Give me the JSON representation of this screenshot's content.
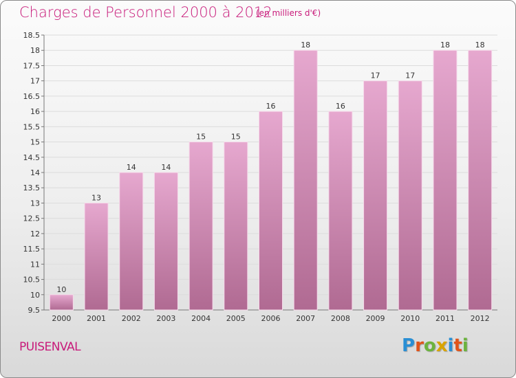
{
  "title": "Charges de Personnel 2000 à 2012",
  "subtitle": "(en milliers d'€)",
  "commune": "PUISENVAL",
  "logo": {
    "letters": [
      "P",
      "r",
      "o",
      "x",
      "i",
      "t",
      "i"
    ],
    "colors": [
      "#2a8fd4",
      "#e0541a",
      "#6cb33e",
      "#d9a400",
      "#2a8fd4",
      "#e0541a",
      "#6cb33e"
    ]
  },
  "colors": {
    "bar_top": "#e6a8cf",
    "bar_bottom": "#b06a92",
    "accent": "#c81a7a"
  },
  "chart_data": {
    "type": "bar",
    "categories": [
      "2000",
      "2001",
      "2002",
      "2003",
      "2004",
      "2005",
      "2006",
      "2007",
      "2008",
      "2009",
      "2010",
      "2011",
      "2012"
    ],
    "values": [
      10,
      13,
      14,
      14,
      15,
      15,
      16,
      18,
      16,
      17,
      17,
      18,
      18
    ],
    "ylim": [
      9.5,
      18.5
    ],
    "yticks": [
      "9.5",
      "10",
      "10.5",
      "11",
      "11.5",
      "12",
      "12.5",
      "13",
      "13.5",
      "14",
      "14.5",
      "15",
      "15.5",
      "16",
      "16.5",
      "17",
      "17.5",
      "18",
      "18.5"
    ],
    "grid": true,
    "title": "Charges de Personnel 2000 à 2012",
    "xlabel": "",
    "ylabel": ""
  }
}
